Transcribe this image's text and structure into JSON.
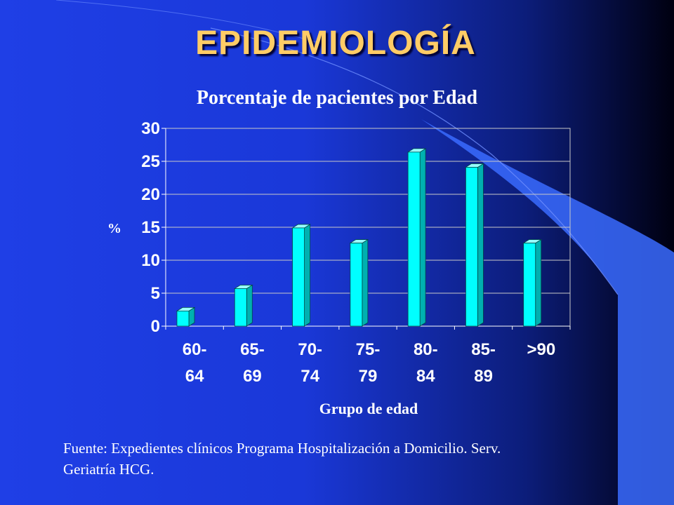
{
  "slide": {
    "title": "EPIDEMIOLOGÍA",
    "source_line1": "Fuente: Expedientes clínicos Programa Hospitalización a Domicilio. Serv.",
    "source_line2": "Geriatría HCG."
  },
  "colors": {
    "title": "#ffcc66",
    "bar_front": "#00ffff",
    "bar_side": "#00b0b0",
    "bar_top": "#99ffff",
    "background_left": "#1f3fe6",
    "background_right": "#000010",
    "decor_wave": "#3a6bff"
  },
  "chart_data": {
    "type": "bar",
    "title": "Porcentaje de pacientes por Edad",
    "xlabel": "Grupo de edad",
    "ylabel": "%",
    "categories": [
      [
        "60-",
        "64"
      ],
      [
        "65-",
        "69"
      ],
      [
        "70-",
        "74"
      ],
      [
        "75-",
        "79"
      ],
      [
        "80-",
        "84"
      ],
      [
        "85-",
        "89"
      ],
      [
        ">90"
      ]
    ],
    "values": [
      2.3,
      5.7,
      14.9,
      12.6,
      26.4,
      24.1,
      12.6
    ],
    "ylim": [
      0,
      30
    ],
    "yticks": [
      0,
      5,
      10,
      15,
      20,
      25,
      30
    ],
    "grid": true,
    "legend": "none"
  }
}
